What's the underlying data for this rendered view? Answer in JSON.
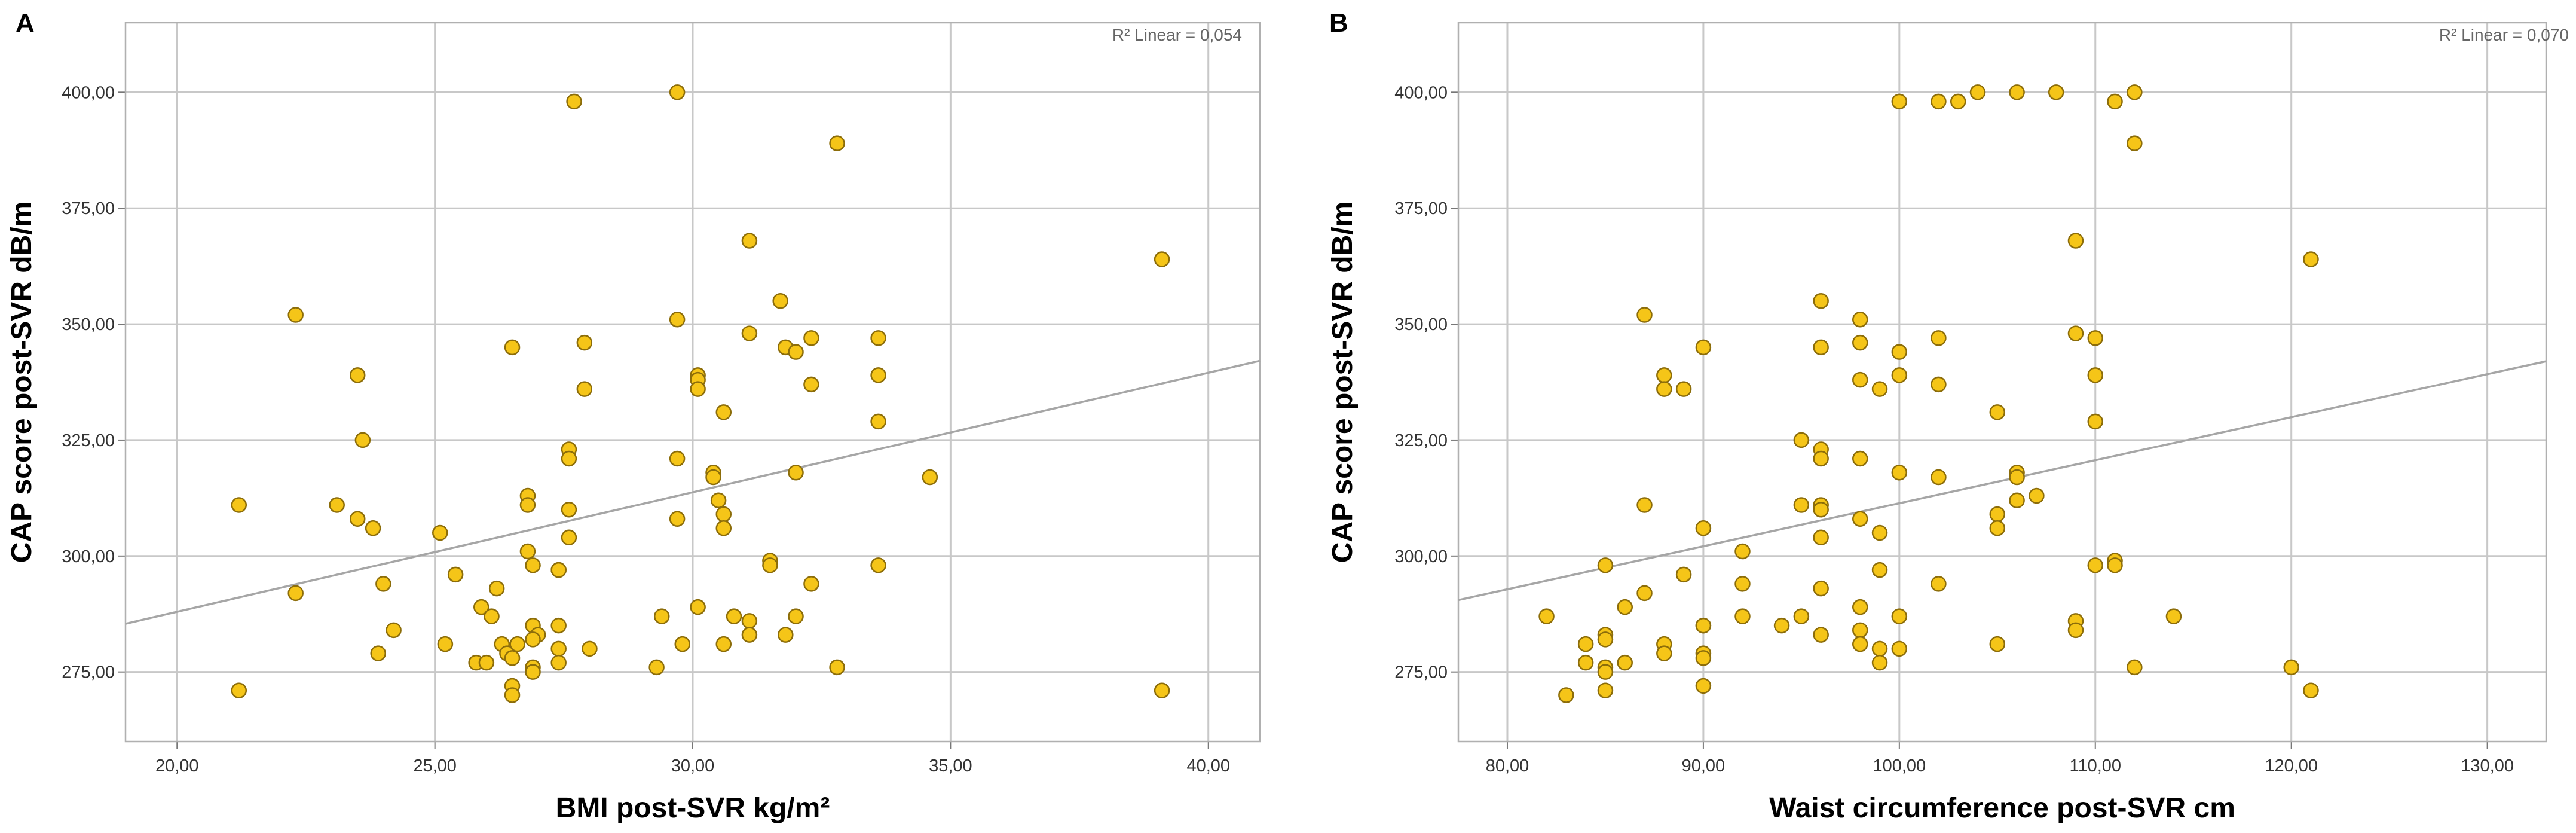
{
  "colors": {
    "point_fill": "#F5C518",
    "point_stroke": "#8C6D0A",
    "fit_line": "#A6A6A6",
    "grid": "#C8C8C8",
    "frame": "#B0B0B0"
  },
  "chart_data": [
    {
      "type": "scatter",
      "panel": "A",
      "r2_label": "R² Linear = 0,054",
      "xlabel": "BMI post-SVR kg/m²",
      "ylabel": "CAP score post-SVR dB/m",
      "xlim": [
        19.0,
        41.0
      ],
      "ylim": [
        260,
        415
      ],
      "xticks": [
        20,
        25,
        30,
        35,
        40
      ],
      "yticks": [
        275,
        300,
        325,
        350,
        375,
        400
      ],
      "xtick_labels": [
        "20,00",
        "25,00",
        "30,00",
        "35,00",
        "40,00"
      ],
      "ytick_labels": [
        "275,00",
        "300,00",
        "325,00",
        "350,00",
        "375,00",
        "400,00"
      ],
      "fit_line": {
        "x": [
          19.0,
          41.0
        ],
        "y": [
          285.4,
          342.1
        ]
      },
      "points": [
        [
          21.2,
          311
        ],
        [
          21.2,
          271
        ],
        [
          22.3,
          352
        ],
        [
          22.3,
          292
        ],
        [
          23.1,
          311
        ],
        [
          23.5,
          339
        ],
        [
          23.6,
          325
        ],
        [
          23.5,
          308
        ],
        [
          23.8,
          306
        ],
        [
          24.0,
          294
        ],
        [
          24.2,
          284
        ],
        [
          23.9,
          279
        ],
        [
          25.1,
          305
        ],
        [
          25.4,
          296
        ],
        [
          25.2,
          281
        ],
        [
          25.8,
          277
        ],
        [
          26.0,
          277
        ],
        [
          25.9,
          289
        ],
        [
          26.1,
          287
        ],
        [
          26.2,
          293
        ],
        [
          26.3,
          281
        ],
        [
          26.4,
          279
        ],
        [
          26.5,
          345
        ],
        [
          26.5,
          278
        ],
        [
          26.5,
          272
        ],
        [
          26.5,
          270
        ],
        [
          26.6,
          281
        ],
        [
          26.8,
          313
        ],
        [
          26.8,
          311
        ],
        [
          26.8,
          301
        ],
        [
          26.9,
          298
        ],
        [
          26.9,
          285
        ],
        [
          27.0,
          283
        ],
        [
          26.9,
          282
        ],
        [
          26.9,
          276
        ],
        [
          26.9,
          275
        ],
        [
          27.4,
          297
        ],
        [
          27.4,
          297
        ],
        [
          27.4,
          285
        ],
        [
          27.4,
          280
        ],
        [
          27.4,
          277
        ],
        [
          27.7,
          398
        ],
        [
          27.6,
          323
        ],
        [
          27.6,
          321
        ],
        [
          27.6,
          310
        ],
        [
          27.6,
          304
        ],
        [
          27.9,
          346
        ],
        [
          27.9,
          336
        ],
        [
          28.0,
          280
        ],
        [
          29.3,
          276
        ],
        [
          29.4,
          287
        ],
        [
          29.7,
          400
        ],
        [
          29.7,
          351
        ],
        [
          29.7,
          321
        ],
        [
          29.7,
          308
        ],
        [
          29.8,
          281
        ],
        [
          30.1,
          339
        ],
        [
          30.1,
          338
        ],
        [
          30.1,
          336
        ],
        [
          30.1,
          289
        ],
        [
          30.4,
          318
        ],
        [
          30.4,
          317
        ],
        [
          30.5,
          312
        ],
        [
          30.6,
          331
        ],
        [
          30.6,
          309
        ],
        [
          30.6,
          306
        ],
        [
          30.6,
          281
        ],
        [
          30.8,
          287
        ],
        [
          31.1,
          368
        ],
        [
          31.1,
          348
        ],
        [
          31.1,
          286
        ],
        [
          31.1,
          283
        ],
        [
          31.5,
          299
        ],
        [
          31.5,
          298
        ],
        [
          31.7,
          355
        ],
        [
          31.8,
          345
        ],
        [
          31.8,
          283
        ],
        [
          32.0,
          344
        ],
        [
          32.0,
          318
        ],
        [
          32.0,
          287
        ],
        [
          32.3,
          347
        ],
        [
          32.3,
          337
        ],
        [
          32.3,
          294
        ],
        [
          32.8,
          389
        ],
        [
          32.8,
          276
        ],
        [
          33.6,
          347
        ],
        [
          33.6,
          339
        ],
        [
          33.6,
          329
        ],
        [
          33.6,
          298
        ],
        [
          34.6,
          317
        ],
        [
          39.1,
          364
        ],
        [
          39.1,
          271
        ]
      ]
    },
    {
      "type": "scatter",
      "panel": "B",
      "r2_label": "R² Linear = 0,070",
      "xlabel": "Waist circumference post-SVR cm",
      "ylabel": "CAP score post-SVR dB/m",
      "xlim": [
        77.5,
        133.0
      ],
      "ylim": [
        260,
        415
      ],
      "xticks": [
        80,
        90,
        100,
        110,
        120,
        130
      ],
      "yticks": [
        275,
        300,
        325,
        350,
        375,
        400
      ],
      "xtick_labels": [
        "80,00",
        "90,00",
        "100,00",
        "110,00",
        "120,00",
        "130,00"
      ],
      "ytick_labels": [
        "275,00",
        "300,00",
        "325,00",
        "350,00",
        "375,00",
        "400,00"
      ],
      "fit_line": {
        "x": [
          77.5,
          133.0
        ],
        "y": [
          290.5,
          342.0
        ]
      },
      "points": [
        [
          82,
          287
        ],
        [
          83,
          270
        ],
        [
          84,
          281
        ],
        [
          84,
          277
        ],
        [
          85,
          298
        ],
        [
          85,
          283
        ],
        [
          85,
          282
        ],
        [
          85,
          276
        ],
        [
          85,
          275
        ],
        [
          85,
          271
        ],
        [
          86,
          289
        ],
        [
          86,
          277
        ],
        [
          87,
          352
        ],
        [
          87,
          311
        ],
        [
          87,
          292
        ],
        [
          88,
          339
        ],
        [
          88,
          336
        ],
        [
          88,
          281
        ],
        [
          88,
          279
        ],
        [
          89,
          336
        ],
        [
          89,
          296
        ],
        [
          90,
          345
        ],
        [
          90,
          306
        ],
        [
          90,
          285
        ],
        [
          90,
          285
        ],
        [
          90,
          279
        ],
        [
          90,
          278
        ],
        [
          90,
          272
        ],
        [
          92,
          301
        ],
        [
          92,
          294
        ],
        [
          92,
          287
        ],
        [
          94,
          285
        ],
        [
          95,
          325
        ],
        [
          95,
          311
        ],
        [
          95,
          287
        ],
        [
          96,
          355
        ],
        [
          96,
          345
        ],
        [
          96,
          323
        ],
        [
          96,
          321
        ],
        [
          96,
          311
        ],
        [
          96,
          310
        ],
        [
          96,
          304
        ],
        [
          96,
          293
        ],
        [
          96,
          283
        ],
        [
          98,
          351
        ],
        [
          98,
          346
        ],
        [
          98,
          338
        ],
        [
          98,
          321
        ],
        [
          98,
          308
        ],
        [
          98,
          289
        ],
        [
          98,
          284
        ],
        [
          98,
          281
        ],
        [
          99,
          336
        ],
        [
          99,
          305
        ],
        [
          99,
          297
        ],
        [
          99,
          280
        ],
        [
          99,
          277
        ],
        [
          100,
          398
        ],
        [
          100,
          344
        ],
        [
          100,
          339
        ],
        [
          100,
          318
        ],
        [
          100,
          287
        ],
        [
          100,
          280
        ],
        [
          102,
          398
        ],
        [
          102,
          347
        ],
        [
          102,
          337
        ],
        [
          102,
          317
        ],
        [
          102,
          294
        ],
        [
          103,
          398
        ],
        [
          104,
          400
        ],
        [
          105,
          331
        ],
        [
          105,
          309
        ],
        [
          105,
          306
        ],
        [
          105,
          281
        ],
        [
          106,
          400
        ],
        [
          106,
          318
        ],
        [
          106,
          317
        ],
        [
          106,
          312
        ],
        [
          107,
          313
        ],
        [
          108,
          400
        ],
        [
          109,
          368
        ],
        [
          109,
          348
        ],
        [
          109,
          286
        ],
        [
          109,
          284
        ],
        [
          110,
          347
        ],
        [
          110,
          339
        ],
        [
          110,
          329
        ],
        [
          110,
          298
        ],
        [
          111,
          398
        ],
        [
          111,
          299
        ],
        [
          111,
          298
        ],
        [
          112,
          400
        ],
        [
          112,
          389
        ],
        [
          112,
          276
        ],
        [
          114,
          287
        ],
        [
          120,
          276
        ],
        [
          121,
          364
        ],
        [
          121,
          271
        ]
      ]
    }
  ]
}
